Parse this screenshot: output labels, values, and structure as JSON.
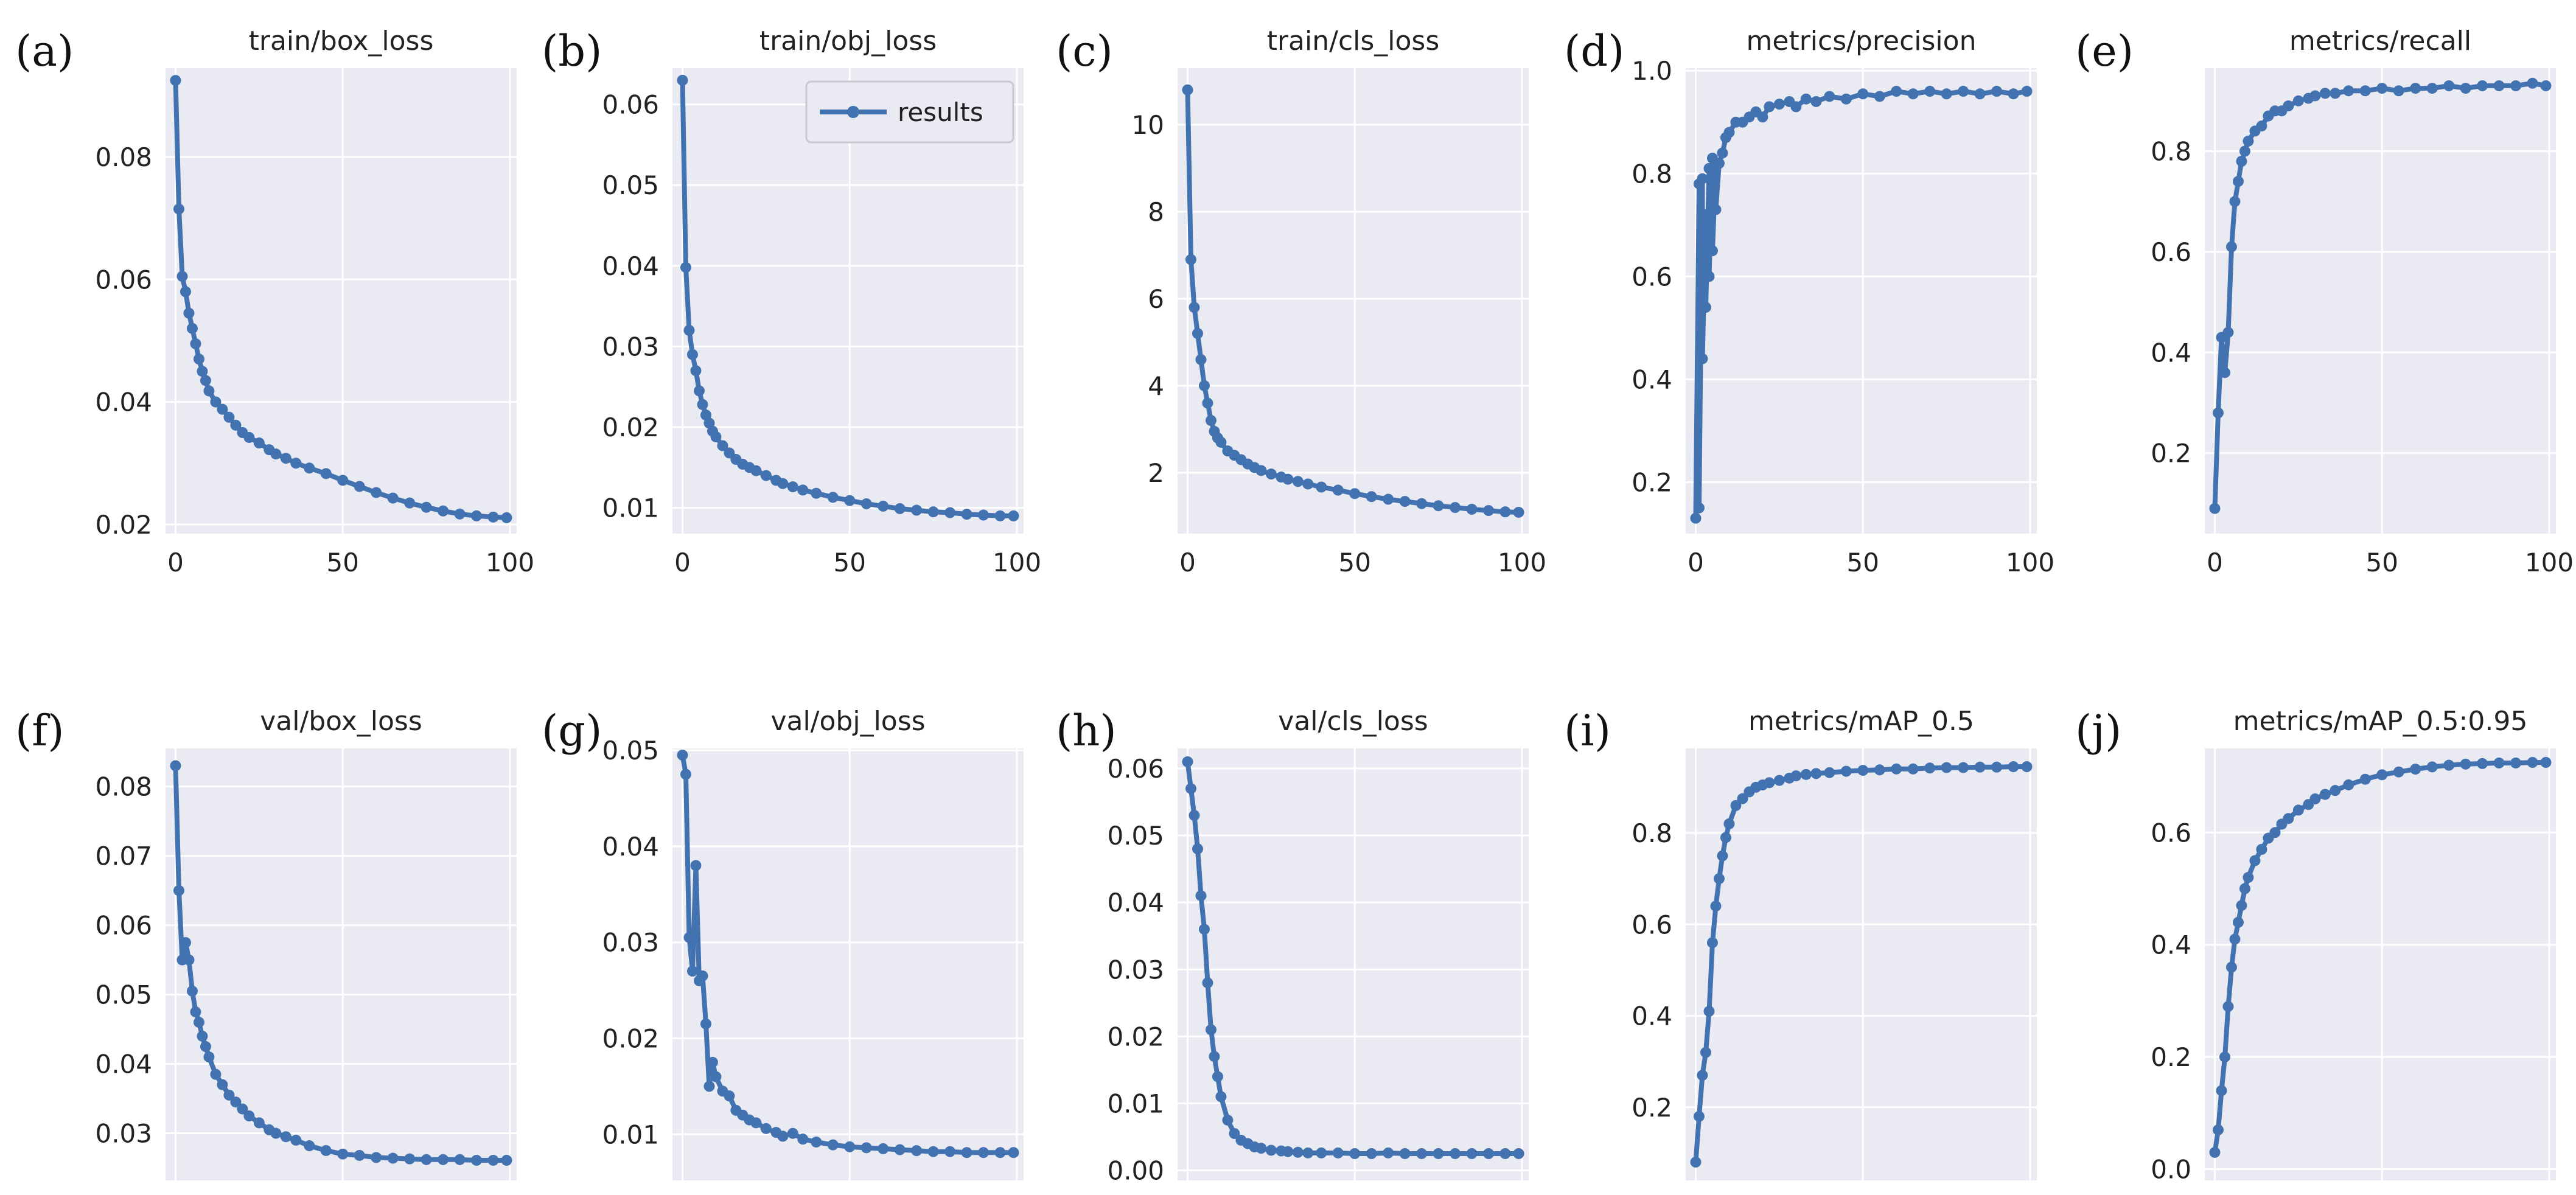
{
  "figure": {
    "accent_color": "#4272b0",
    "plot_bg": "#eaeaf2",
    "grid_color": "#ffffff",
    "legend_label": "results"
  },
  "chart_data": [
    {
      "panel": "(a)",
      "title": "train/box_loss",
      "type": "line",
      "series_name": "results",
      "xlim": [
        -3,
        102
      ],
      "ylim": [
        0.0185,
        0.0945
      ],
      "xticks": [
        0,
        50,
        100
      ],
      "yticks": [
        0.02,
        0.04,
        0.06,
        0.08
      ],
      "ytick_labels": [
        "0.02",
        "0.04",
        "0.06",
        "0.08"
      ],
      "x": [
        0,
        1,
        2,
        3,
        4,
        5,
        6,
        7,
        8,
        9,
        10,
        12,
        14,
        16,
        18,
        20,
        22,
        25,
        28,
        30,
        33,
        36,
        40,
        45,
        50,
        55,
        60,
        65,
        70,
        75,
        80,
        85,
        90,
        95,
        99
      ],
      "y": [
        0.0925,
        0.0715,
        0.0605,
        0.058,
        0.0545,
        0.052,
        0.0495,
        0.047,
        0.045,
        0.0435,
        0.0418,
        0.04,
        0.0388,
        0.0375,
        0.0362,
        0.035,
        0.0342,
        0.0333,
        0.0322,
        0.0315,
        0.0308,
        0.03,
        0.0292,
        0.0283,
        0.0272,
        0.0262,
        0.0252,
        0.0243,
        0.0235,
        0.0228,
        0.0222,
        0.0217,
        0.0214,
        0.0212,
        0.0211
      ]
    },
    {
      "panel": "(b)",
      "title": "train/obj_loss",
      "type": "line",
      "series_name": "results",
      "legend": "top-right",
      "xlim": [
        -3,
        102
      ],
      "ylim": [
        0.0068,
        0.0645
      ],
      "xticks": [
        0,
        50,
        100
      ],
      "yticks": [
        0.01,
        0.02,
        0.03,
        0.04,
        0.05,
        0.06
      ],
      "ytick_labels": [
        "0.01",
        "0.02",
        "0.03",
        "0.04",
        "0.05",
        "0.06"
      ],
      "x": [
        0,
        1,
        2,
        3,
        4,
        5,
        6,
        7,
        8,
        9,
        10,
        12,
        14,
        16,
        18,
        20,
        22,
        25,
        28,
        30,
        33,
        36,
        40,
        45,
        50,
        55,
        60,
        65,
        70,
        75,
        80,
        85,
        90,
        95,
        99
      ],
      "y": [
        0.063,
        0.0398,
        0.032,
        0.029,
        0.027,
        0.0245,
        0.0228,
        0.0215,
        0.0205,
        0.0195,
        0.0188,
        0.0177,
        0.0168,
        0.016,
        0.0154,
        0.015,
        0.0146,
        0.014,
        0.0134,
        0.013,
        0.0126,
        0.0122,
        0.0118,
        0.0113,
        0.0109,
        0.0105,
        0.0102,
        0.0099,
        0.0097,
        0.0095,
        0.0094,
        0.0092,
        0.0091,
        0.009,
        0.009
      ]
    },
    {
      "panel": "(c)",
      "title": "train/cls_loss",
      "type": "line",
      "series_name": "results",
      "xlim": [
        -3,
        102
      ],
      "ylim": [
        0.6,
        11.3
      ],
      "xticks": [
        0,
        50,
        100
      ],
      "yticks": [
        2,
        4,
        6,
        8,
        10
      ],
      "ytick_labels": [
        "2",
        "4",
        "6",
        "8",
        "10"
      ],
      "x": [
        0,
        1,
        2,
        3,
        4,
        5,
        6,
        7,
        8,
        9,
        10,
        12,
        14,
        16,
        18,
        20,
        22,
        25,
        28,
        30,
        33,
        36,
        40,
        45,
        50,
        55,
        60,
        65,
        70,
        75,
        80,
        85,
        90,
        95,
        99
      ],
      "y": [
        10.8,
        6.9,
        5.8,
        5.2,
        4.6,
        4.0,
        3.6,
        3.2,
        2.95,
        2.8,
        2.7,
        2.5,
        2.4,
        2.3,
        2.2,
        2.12,
        2.05,
        1.97,
        1.9,
        1.85,
        1.8,
        1.74,
        1.67,
        1.6,
        1.52,
        1.45,
        1.39,
        1.34,
        1.29,
        1.24,
        1.2,
        1.16,
        1.13,
        1.1,
        1.09
      ]
    },
    {
      "panel": "(d)",
      "title": "metrics/precision",
      "type": "line",
      "series_name": "results",
      "xlim": [
        -3,
        102
      ],
      "ylim": [
        0.1,
        1.005
      ],
      "xticks": [
        0,
        50,
        100
      ],
      "yticks": [
        0.2,
        0.4,
        0.6,
        0.8,
        1.0
      ],
      "ytick_labels": [
        "0.2",
        "0.4",
        "0.6",
        "0.8",
        "1.0"
      ],
      "x": [
        0,
        1,
        1,
        2,
        2,
        3,
        3,
        4,
        4,
        5,
        5,
        6,
        6,
        7,
        8,
        9,
        10,
        12,
        14,
        16,
        18,
        20,
        22,
        25,
        28,
        30,
        33,
        36,
        40,
        45,
        50,
        55,
        60,
        65,
        70,
        75,
        80,
        85,
        90,
        95,
        99
      ],
      "y": [
        0.13,
        0.78,
        0.15,
        0.79,
        0.44,
        0.72,
        0.54,
        0.81,
        0.6,
        0.83,
        0.65,
        0.82,
        0.73,
        0.82,
        0.84,
        0.87,
        0.88,
        0.9,
        0.9,
        0.91,
        0.92,
        0.91,
        0.93,
        0.935,
        0.94,
        0.93,
        0.945,
        0.94,
        0.95,
        0.945,
        0.955,
        0.95,
        0.96,
        0.955,
        0.96,
        0.955,
        0.96,
        0.955,
        0.96,
        0.955,
        0.96
      ]
    },
    {
      "panel": "(e)",
      "title": "metrics/recall",
      "type": "line",
      "series_name": "results",
      "xlim": [
        -3,
        102
      ],
      "ylim": [
        0.04,
        0.965
      ],
      "xticks": [
        0,
        50,
        100
      ],
      "yticks": [
        0.2,
        0.4,
        0.6,
        0.8
      ],
      "ytick_labels": [
        "0.2",
        "0.4",
        "0.6",
        "0.8"
      ],
      "x": [
        0,
        1,
        2,
        3,
        4,
        5,
        6,
        7,
        8,
        9,
        10,
        12,
        14,
        16,
        18,
        20,
        22,
        25,
        28,
        30,
        33,
        36,
        40,
        45,
        50,
        55,
        60,
        65,
        70,
        75,
        80,
        85,
        90,
        95,
        99
      ],
      "y": [
        0.09,
        0.28,
        0.43,
        0.36,
        0.44,
        0.61,
        0.7,
        0.74,
        0.78,
        0.8,
        0.82,
        0.84,
        0.85,
        0.87,
        0.88,
        0.88,
        0.89,
        0.9,
        0.905,
        0.91,
        0.915,
        0.915,
        0.92,
        0.92,
        0.925,
        0.92,
        0.925,
        0.925,
        0.93,
        0.925,
        0.93,
        0.93,
        0.93,
        0.935,
        0.93
      ]
    },
    {
      "panel": "(f)",
      "title": "val/box_loss",
      "type": "line",
      "series_name": "results",
      "xlim": [
        -3,
        102
      ],
      "ylim": [
        0.0232,
        0.0855
      ],
      "xticks": [
        0,
        50,
        100
      ],
      "yticks": [
        0.03,
        0.04,
        0.05,
        0.06,
        0.07,
        0.08
      ],
      "ytick_labels": [
        "0.03",
        "0.04",
        "0.05",
        "0.06",
        "0.07",
        "0.08"
      ],
      "x": [
        0,
        1,
        2,
        3,
        4,
        5,
        6,
        7,
        8,
        9,
        10,
        12,
        14,
        16,
        18,
        20,
        22,
        25,
        28,
        30,
        33,
        36,
        40,
        45,
        50,
        55,
        60,
        65,
        70,
        75,
        80,
        85,
        90,
        95,
        99
      ],
      "y": [
        0.083,
        0.065,
        0.055,
        0.0575,
        0.055,
        0.0505,
        0.0475,
        0.046,
        0.044,
        0.0425,
        0.041,
        0.0385,
        0.037,
        0.0355,
        0.0345,
        0.0335,
        0.0325,
        0.0315,
        0.0305,
        0.03,
        0.0295,
        0.029,
        0.0282,
        0.0275,
        0.027,
        0.0268,
        0.0265,
        0.0264,
        0.0263,
        0.0262,
        0.0262,
        0.0262,
        0.0261,
        0.0261,
        0.0261
      ]
    },
    {
      "panel": "(g)",
      "title": "val/obj_loss",
      "type": "line",
      "series_name": "results",
      "xlim": [
        -3,
        102
      ],
      "ylim": [
        0.0052,
        0.0502
      ],
      "xticks": [
        0,
        50,
        100
      ],
      "yticks": [
        0.01,
        0.02,
        0.03,
        0.04,
        0.05
      ],
      "ytick_labels": [
        "0.01",
        "0.02",
        "0.03",
        "0.04",
        "0.05"
      ],
      "x": [
        0,
        1,
        2,
        3,
        4,
        5,
        6,
        7,
        8,
        9,
        10,
        12,
        14,
        16,
        18,
        20,
        22,
        25,
        28,
        30,
        33,
        36,
        40,
        45,
        50,
        55,
        60,
        65,
        70,
        75,
        80,
        85,
        90,
        95,
        99
      ],
      "y": [
        0.0495,
        0.0475,
        0.0305,
        0.027,
        0.038,
        0.026,
        0.0265,
        0.0215,
        0.015,
        0.0175,
        0.016,
        0.0145,
        0.014,
        0.0125,
        0.012,
        0.0115,
        0.0112,
        0.0106,
        0.0102,
        0.0098,
        0.0101,
        0.0095,
        0.0092,
        0.0089,
        0.0087,
        0.0086,
        0.0085,
        0.0084,
        0.0083,
        0.0082,
        0.0082,
        0.0081,
        0.0081,
        0.0081,
        0.0081
      ]
    },
    {
      "panel": "(h)",
      "title": "val/cls_loss",
      "type": "line",
      "series_name": "results",
      "xlim": [
        -3,
        102
      ],
      "ylim": [
        -0.0015,
        0.063
      ],
      "xticks": [
        0,
        50,
        100
      ],
      "yticks": [
        0.0,
        0.01,
        0.02,
        0.03,
        0.04,
        0.05,
        0.06
      ],
      "ytick_labels": [
        "0.00",
        "0.01",
        "0.02",
        "0.03",
        "0.04",
        "0.05",
        "0.06"
      ],
      "x": [
        0,
        1,
        2,
        3,
        4,
        5,
        6,
        7,
        8,
        9,
        10,
        12,
        14,
        16,
        18,
        20,
        22,
        25,
        28,
        30,
        33,
        36,
        40,
        45,
        50,
        55,
        60,
        65,
        70,
        75,
        80,
        85,
        90,
        95,
        99
      ],
      "y": [
        0.061,
        0.057,
        0.053,
        0.048,
        0.041,
        0.036,
        0.028,
        0.021,
        0.017,
        0.014,
        0.011,
        0.0075,
        0.0055,
        0.0045,
        0.004,
        0.0035,
        0.0033,
        0.003,
        0.0029,
        0.0028,
        0.0027,
        0.0026,
        0.0026,
        0.0026,
        0.0025,
        0.0025,
        0.0026,
        0.0025,
        0.0025,
        0.0025,
        0.0025,
        0.0025,
        0.0025,
        0.0025,
        0.0025
      ]
    },
    {
      "panel": "(i)",
      "title": "metrics/mAP_0.5",
      "type": "line",
      "series_name": "results",
      "xlim": [
        -3,
        102
      ],
      "ylim": [
        0.04,
        0.985
      ],
      "xticks": [
        0,
        50,
        100
      ],
      "yticks": [
        0.2,
        0.4,
        0.6,
        0.8
      ],
      "ytick_labels": [
        "0.2",
        "0.4",
        "0.6",
        "0.8"
      ],
      "x": [
        0,
        1,
        2,
        3,
        4,
        5,
        6,
        7,
        8,
        9,
        10,
        12,
        14,
        16,
        18,
        20,
        22,
        25,
        28,
        30,
        33,
        36,
        40,
        45,
        50,
        55,
        60,
        65,
        70,
        75,
        80,
        85,
        90,
        95,
        99
      ],
      "y": [
        0.08,
        0.18,
        0.27,
        0.32,
        0.41,
        0.56,
        0.64,
        0.7,
        0.75,
        0.79,
        0.82,
        0.86,
        0.875,
        0.89,
        0.9,
        0.905,
        0.91,
        0.915,
        0.92,
        0.925,
        0.928,
        0.93,
        0.932,
        0.935,
        0.937,
        0.938,
        0.94,
        0.94,
        0.942,
        0.943,
        0.943,
        0.944,
        0.944,
        0.945,
        0.945
      ]
    },
    {
      "panel": "(j)",
      "title": "metrics/mAP_0.5:0.95",
      "type": "line",
      "series_name": "results",
      "xlim": [
        -3,
        102
      ],
      "ylim": [
        -0.02,
        0.75
      ],
      "xticks": [
        0,
        50,
        100
      ],
      "yticks": [
        0.0,
        0.2,
        0.4,
        0.6
      ],
      "ytick_labels": [
        "0.0",
        "0.2",
        "0.4",
        "0.6"
      ],
      "x": [
        0,
        1,
        2,
        3,
        4,
        5,
        6,
        7,
        8,
        9,
        10,
        12,
        14,
        16,
        18,
        20,
        22,
        25,
        28,
        30,
        33,
        36,
        40,
        45,
        50,
        55,
        60,
        65,
        70,
        75,
        80,
        85,
        90,
        95,
        99
      ],
      "y": [
        0.03,
        0.07,
        0.14,
        0.2,
        0.29,
        0.36,
        0.41,
        0.44,
        0.47,
        0.5,
        0.52,
        0.55,
        0.57,
        0.59,
        0.6,
        0.615,
        0.625,
        0.64,
        0.65,
        0.66,
        0.668,
        0.675,
        0.685,
        0.695,
        0.703,
        0.708,
        0.713,
        0.717,
        0.72,
        0.722,
        0.723,
        0.724,
        0.724,
        0.725,
        0.725
      ]
    }
  ]
}
